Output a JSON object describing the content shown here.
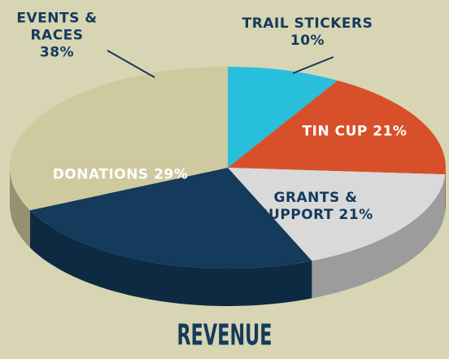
{
  "chart_data": {
    "type": "pie",
    "title": "REVENUE",
    "categories": [
      "TRAIL STICKERS",
      "TIN CUP",
      "GRANTS & SUPPORT",
      "DONATIONS",
      "EVENTS & RACES"
    ],
    "values": [
      10,
      21,
      21,
      29,
      38
    ],
    "value_labels": [
      "10%",
      "21%",
      "21%",
      "29%",
      "38%"
    ],
    "colors": [
      "#27bfdc",
      "#d8502a",
      "#d9d9d9",
      "#143a5c",
      "#cfc99f"
    ]
  }
}
